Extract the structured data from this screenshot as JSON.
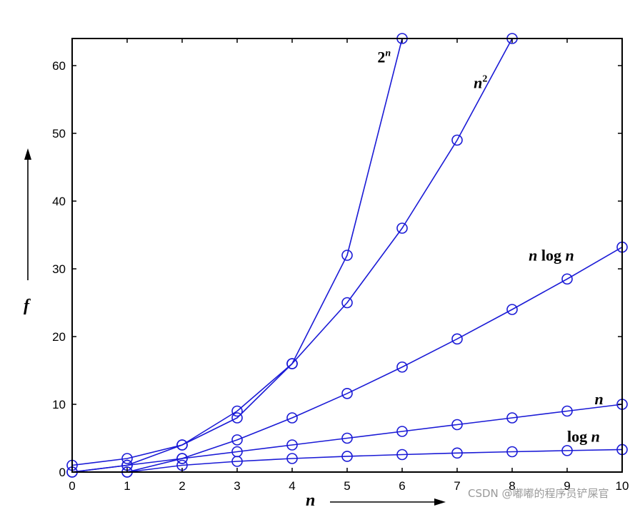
{
  "chart_data": {
    "type": "line",
    "xlabel": "n",
    "ylabel": "f",
    "xlim": [
      0,
      10
    ],
    "ylim": [
      0,
      64
    ],
    "xticks": [
      0,
      1,
      2,
      3,
      4,
      5,
      6,
      7,
      8,
      9,
      10
    ],
    "yticks": [
      0,
      10,
      20,
      30,
      40,
      50,
      60
    ],
    "grid": false,
    "series": [
      {
        "name": "2^n",
        "label_base": "2",
        "label_exp": "n",
        "label_pos": [
          5.55,
          60.5
        ],
        "x": [
          0,
          1,
          2,
          3,
          4,
          5,
          6
        ],
        "y": [
          1,
          2,
          4,
          8,
          16,
          32,
          64
        ]
      },
      {
        "name": "n^2",
        "label_base": "n",
        "label_exp": "2",
        "label_pos": [
          7.3,
          56.7
        ],
        "x": [
          0,
          1,
          2,
          3,
          4,
          5,
          6,
          7,
          8
        ],
        "y": [
          0,
          1,
          4,
          9,
          16,
          25,
          36,
          49,
          64
        ]
      },
      {
        "name": "n log n",
        "label_parts": [
          "n",
          " log ",
          "n"
        ],
        "label_pos": [
          8.3,
          31.2
        ],
        "x": [
          1,
          2,
          3,
          4,
          5,
          6,
          7,
          8,
          9,
          10
        ],
        "y": [
          0,
          2,
          4.75,
          8,
          11.6,
          15.5,
          19.65,
          24,
          28.5,
          33.2
        ]
      },
      {
        "name": "n",
        "label_parts": [
          "n"
        ],
        "label_pos": [
          9.5,
          10.0
        ],
        "x": [
          0,
          1,
          2,
          3,
          4,
          5,
          6,
          7,
          8,
          9,
          10
        ],
        "y": [
          0,
          1,
          2,
          3,
          4,
          5,
          6,
          7,
          8,
          9,
          10
        ]
      },
      {
        "name": "log n",
        "label_parts": [
          "log ",
          "n"
        ],
        "label_pos": [
          9.0,
          4.5
        ],
        "x": [
          1,
          2,
          3,
          4,
          5,
          6,
          7,
          8,
          9,
          10
        ],
        "y": [
          0,
          1,
          1.58,
          2,
          2.32,
          2.58,
          2.81,
          3,
          3.17,
          3.32
        ]
      }
    ],
    "line_color": "#1a1ad6",
    "axis_color": "#000000"
  },
  "watermark": "CSDN @嘟嘟的程序员铲屎官"
}
